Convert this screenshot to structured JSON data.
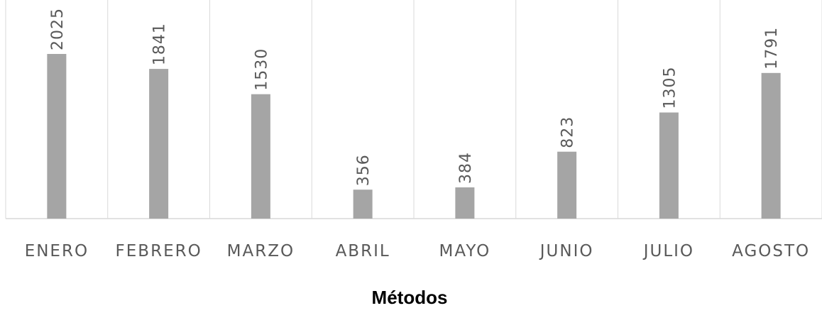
{
  "chart_data": {
    "type": "bar",
    "title": "",
    "xlabel": "Métodos",
    "ylabel": "",
    "categories": [
      "ENERO",
      "FEBRERO",
      "MARZO",
      "ABRIL",
      "MAYO",
      "JUNIO",
      "JULIO",
      "AGOSTO"
    ],
    "values": [
      2025,
      1841,
      1530,
      356,
      384,
      823,
      1305,
      1791
    ],
    "value_labels": [
      "2025",
      "1841",
      "1530",
      "356",
      "384",
      "823",
      "1305",
      "1791"
    ],
    "ylim": [
      0,
      2025
    ],
    "grid": "vertical separators",
    "bar_color": "#a5a5a5",
    "grid_color": "#d9d9d9",
    "label_color": "#595959"
  }
}
